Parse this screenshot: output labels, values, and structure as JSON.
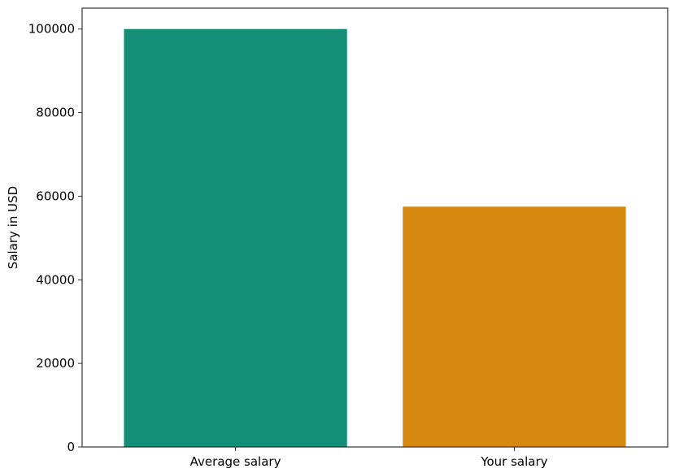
{
  "chart_data": {
    "type": "bar",
    "title": "",
    "xlabel": "",
    "ylabel": "Salary in USD",
    "categories": [
      "Average salary",
      "Your salary"
    ],
    "values": [
      100000,
      57500
    ],
    "colors": [
      "#138e77",
      "#d4880f"
    ],
    "ylim": [
      0,
      105000
    ],
    "yticks": [
      0,
      20000,
      40000,
      60000,
      80000,
      100000
    ],
    "ytick_labels": [
      "0",
      "20000",
      "40000",
      "60000",
      "80000",
      "100000"
    ],
    "grid": false,
    "legend": "none"
  }
}
